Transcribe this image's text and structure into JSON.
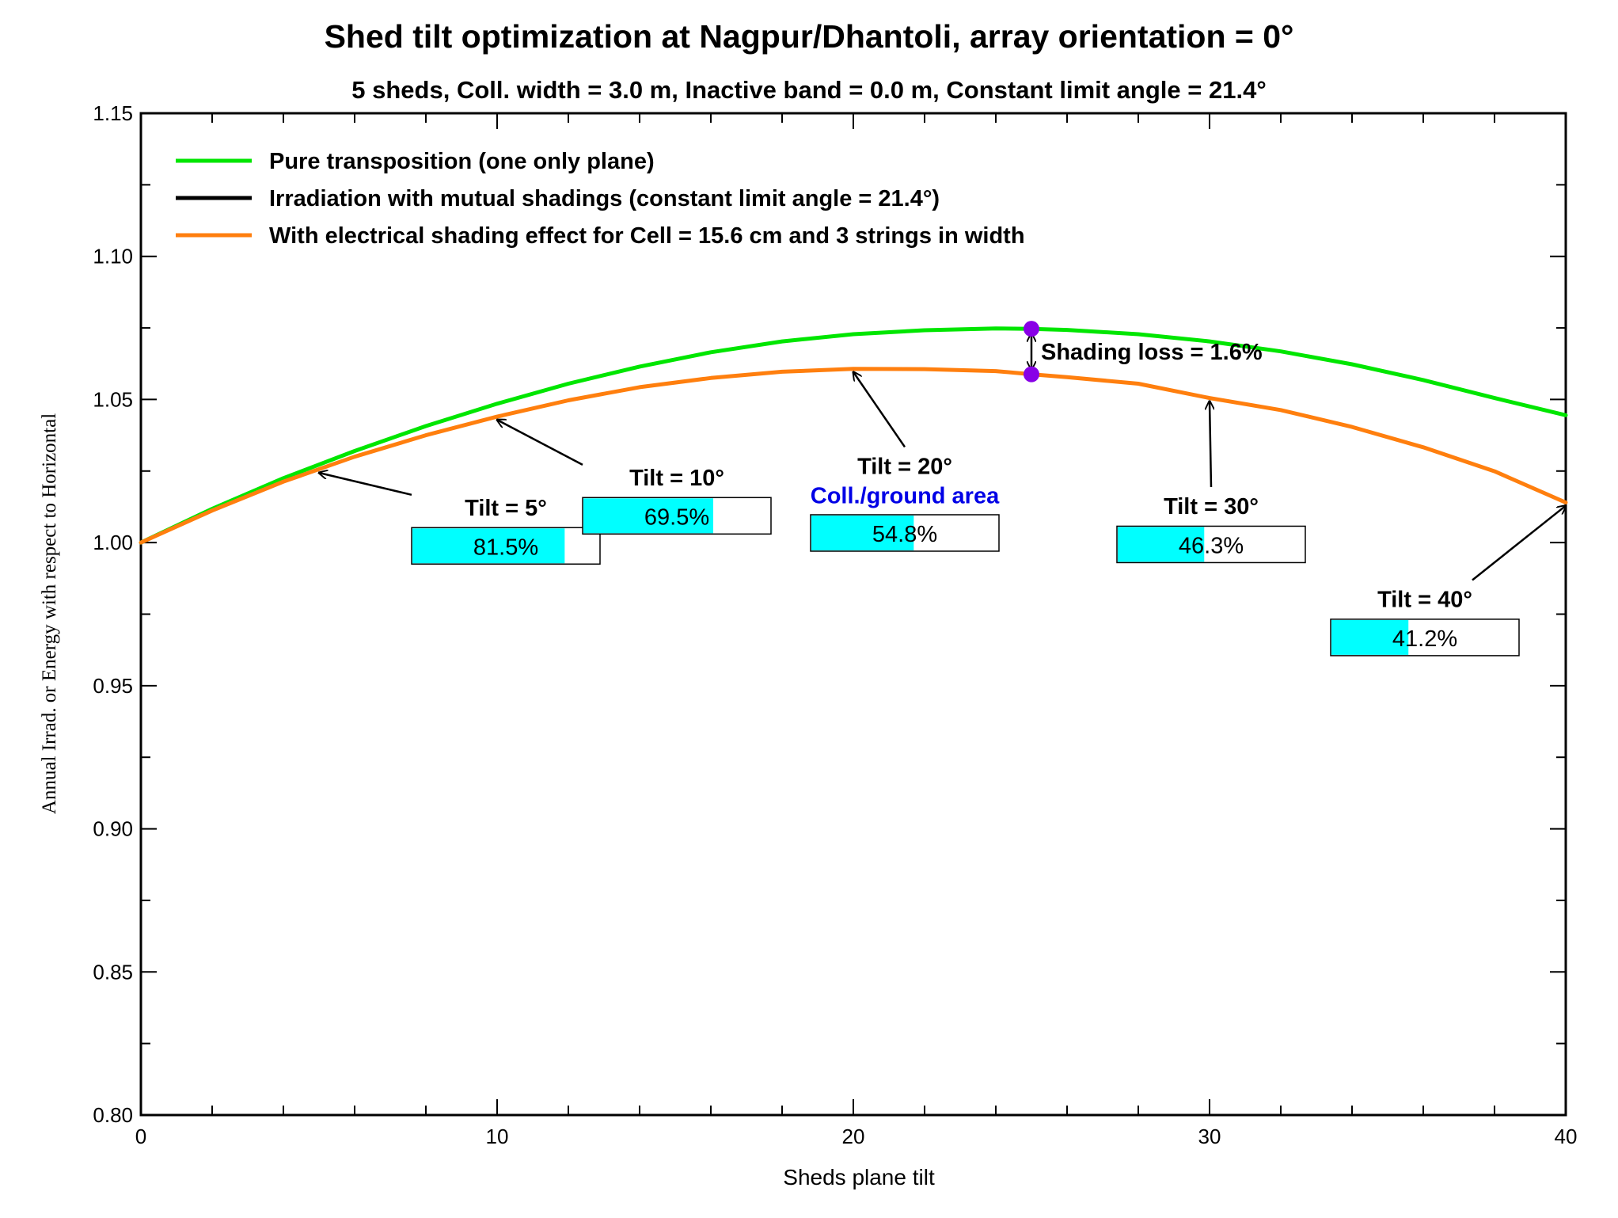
{
  "chart_data": {
    "type": "line",
    "title": "Shed tilt optimization at Nagpur/Dhantoli, array orientation = 0°",
    "subtitle": "5 sheds,  Coll. width = 3.0 m, Inactive band = 0.0 m, Constant limit angle = 21.4°",
    "xlabel": "Sheds plane tilt",
    "ylabel": "Annual Irrad. or Energy with respect to Horizontal",
    "xlim": [
      0,
      40
    ],
    "ylim": [
      0.8,
      1.15
    ],
    "xticks": [
      0,
      10,
      20,
      30,
      40
    ],
    "xtick_labels": [
      "0",
      "10",
      "20",
      "30",
      "40"
    ],
    "yticks": [
      0.8,
      0.85,
      0.9,
      0.95,
      1.0,
      1.05,
      1.1,
      1.15
    ],
    "ytick_labels": [
      "0.80",
      "0.85",
      "0.90",
      "0.95",
      "1.00",
      "1.05",
      "1.10",
      "1.15"
    ],
    "grid": false,
    "legend_position": "top-left",
    "series": [
      {
        "name": "Pure transposition (one only plane)",
        "color": "#00e600",
        "x": [
          0,
          2,
          4,
          6,
          8,
          10,
          12,
          14,
          16,
          18,
          20,
          22,
          24,
          25,
          26,
          28,
          30,
          32,
          34,
          36,
          38,
          40
        ],
        "y": [
          1.0,
          1.0118,
          1.0225,
          1.032,
          1.0407,
          1.0485,
          1.0555,
          1.0615,
          1.0665,
          1.0703,
          1.0728,
          1.0742,
          1.0748,
          1.0747,
          1.0743,
          1.0728,
          1.0703,
          1.0668,
          1.0623,
          1.0568,
          1.0505,
          1.0445
        ]
      },
      {
        "name": "Irradiation with mutual shadings (constant limit angle = 21.4°)",
        "color": "#000000",
        "x": [],
        "y": []
      },
      {
        "name": "With electrical shading effect for Cell = 15.6 cm and 3 strings in width",
        "color": "#ff7f0e",
        "x": [
          0,
          2,
          4,
          6,
          8,
          10,
          12,
          14,
          16,
          18,
          20,
          22,
          24,
          25,
          26,
          28,
          30,
          32,
          34,
          36,
          38,
          40
        ],
        "y": [
          1.0,
          1.0112,
          1.0213,
          1.03,
          1.0375,
          1.044,
          1.0497,
          1.0543,
          1.0575,
          1.0597,
          1.0607,
          1.0606,
          1.0599,
          1.0588,
          1.0578,
          1.0555,
          1.0505,
          1.0463,
          1.0404,
          1.0333,
          1.0249,
          1.014
        ]
      }
    ],
    "markers": [
      {
        "x": 25,
        "y": 1.0747,
        "color": "#8800e6"
      },
      {
        "x": 25,
        "y": 1.0588,
        "color": "#8800e6"
      }
    ],
    "shading_loss_label": "Shading loss = 1.6%",
    "area_title": "Coll./ground area",
    "area_title_color": "#0000e6",
    "box_fill_color": "#00ffff",
    "annotations": [
      {
        "label": "Tilt = 5°",
        "tilt": 5,
        "curve_y": 1.0255,
        "text_x": 7.6,
        "text_y": 1.0095,
        "box_x": 7.6,
        "box_y": 0.9925,
        "ratio": 0.815,
        "ratio_label": "81.5%"
      },
      {
        "label": "Tilt = 10°",
        "tilt": 10,
        "curve_y": 1.044,
        "text_x": 12.4,
        "text_y": 1.02,
        "box_x": 12.4,
        "box_y": 1.003,
        "ratio": 0.695,
        "ratio_label": "69.5%"
      },
      {
        "label": "Tilt = 20°",
        "tilt": 20,
        "curve_y": 1.0607,
        "text_x": 18.8,
        "text_y": 1.024,
        "box_x": 18.8,
        "box_y": 0.997,
        "ratio": 0.548,
        "ratio_label": "54.8%"
      },
      {
        "label": "Tilt = 30°",
        "tilt": 30,
        "curve_y": 1.0505,
        "text_x": 27.4,
        "text_y": 1.01,
        "box_x": 27.4,
        "box_y": 0.993,
        "ratio": 0.463,
        "ratio_label": "46.3%"
      },
      {
        "label": "Tilt = 40°",
        "tilt": 40,
        "curve_y": 1.014,
        "text_x": 33.4,
        "text_y": 0.9775,
        "box_x": 33.4,
        "box_y": 0.9605,
        "ratio": 0.412,
        "ratio_label": "41.2%"
      }
    ]
  }
}
